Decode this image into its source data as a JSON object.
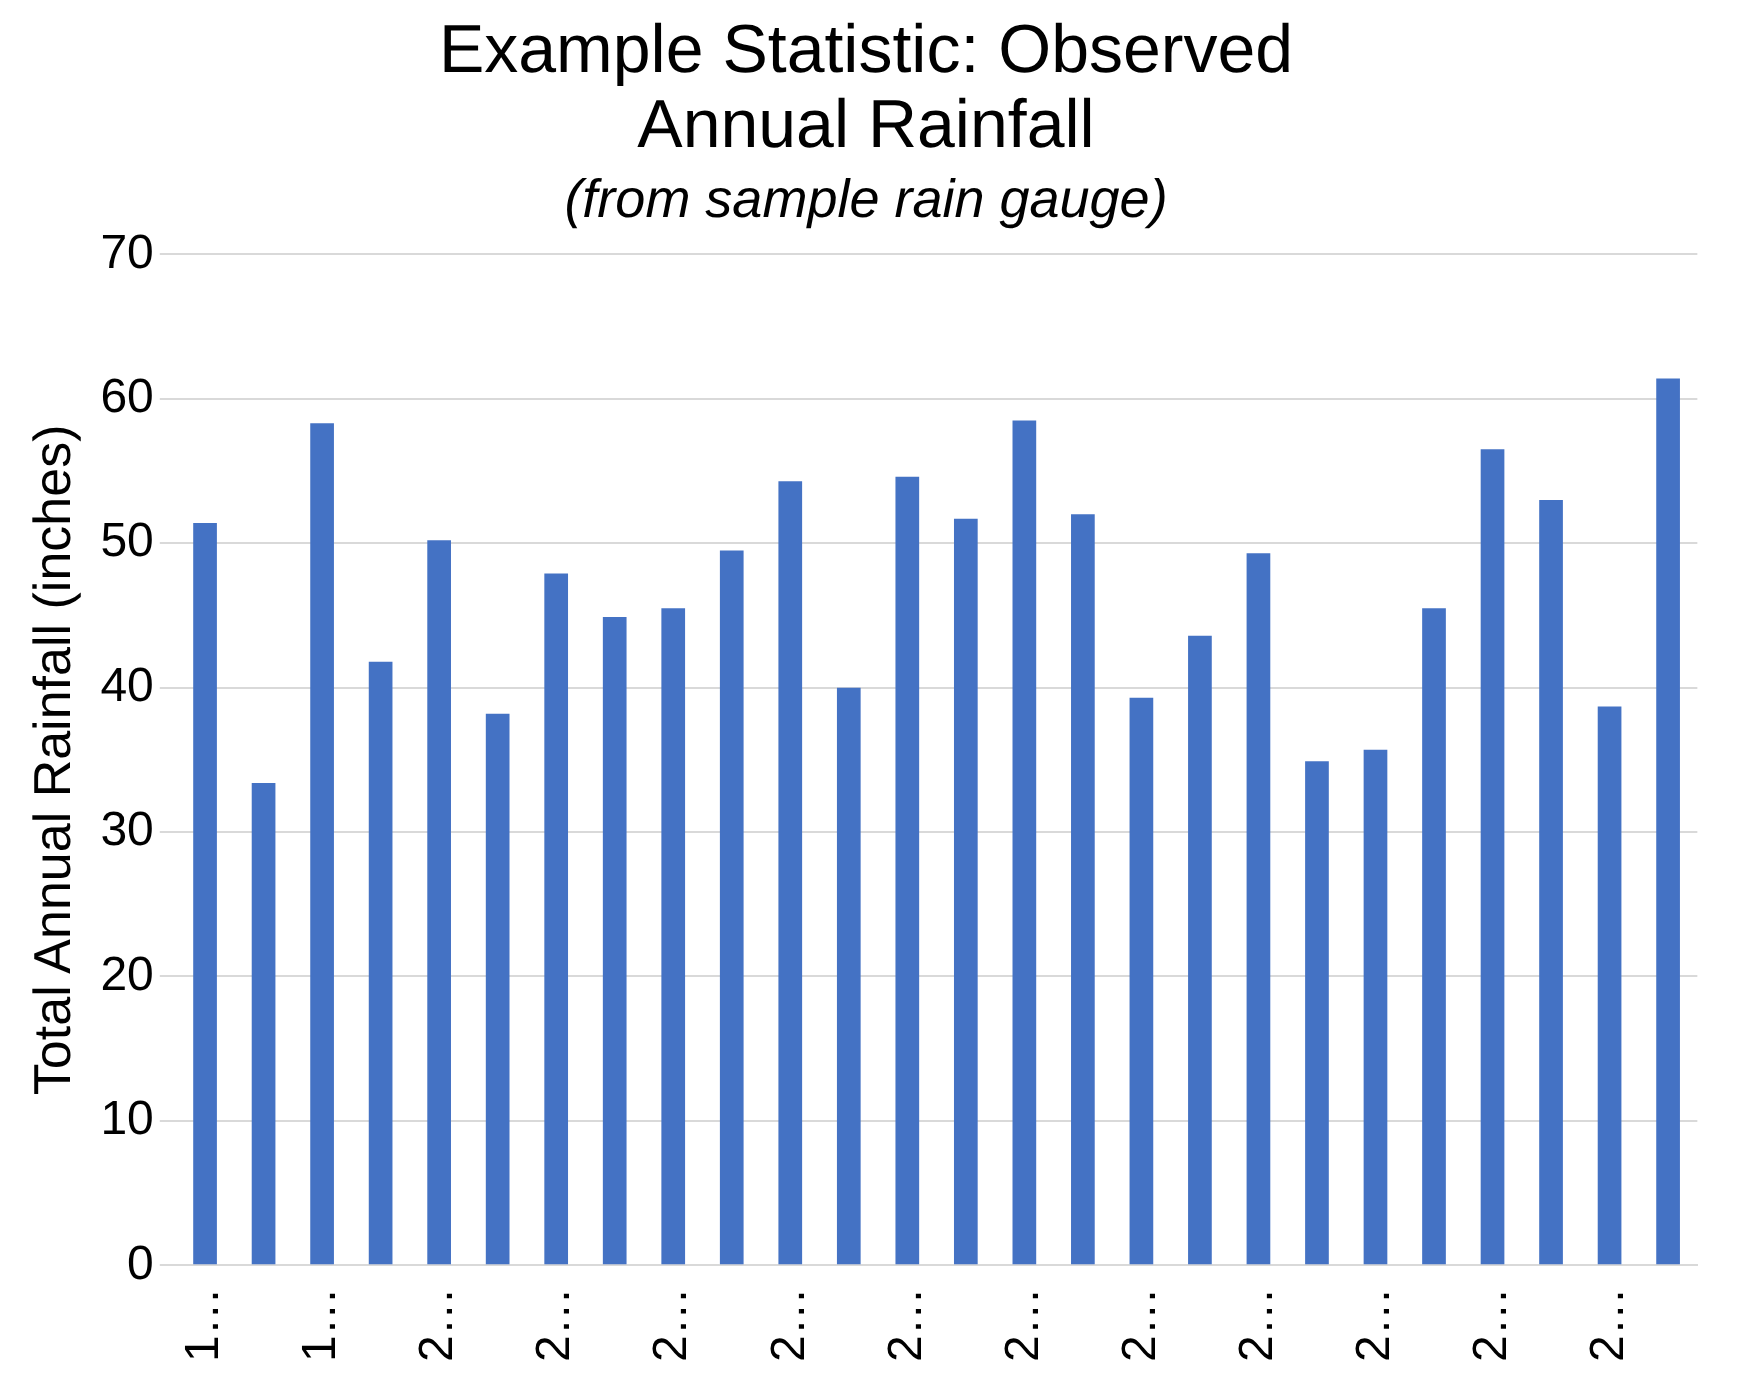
{
  "chart_data": {
    "type": "bar",
    "title": "Example Statistic: Observed Annual Rainfall",
    "subtitle": "(from sample rain gauge)",
    "ylabel": "Total Annual Rainfall (inches)",
    "categories": [
      "1…",
      null,
      "1…",
      null,
      "2…",
      null,
      "2…",
      null,
      "2…",
      null,
      "2…",
      null,
      "2…",
      null,
      "2…",
      null,
      "2…",
      null,
      "2…",
      null,
      "2…",
      null,
      "2…",
      null,
      "2…",
      null
    ],
    "values": [
      51.4,
      33.4,
      58.3,
      41.8,
      50.2,
      38.2,
      47.9,
      44.9,
      45.5,
      49.5,
      54.3,
      40.0,
      54.6,
      51.7,
      58.5,
      52.0,
      39.3,
      43.6,
      49.3,
      34.9,
      35.7,
      45.5,
      56.5,
      53.0,
      38.7,
      61.4
    ],
    "color": "#4472c4",
    "ylim": [
      0,
      70
    ],
    "yticks": [
      0,
      10,
      20,
      30,
      40,
      50,
      60,
      70
    ],
    "grid": "y",
    "legend": false
  }
}
